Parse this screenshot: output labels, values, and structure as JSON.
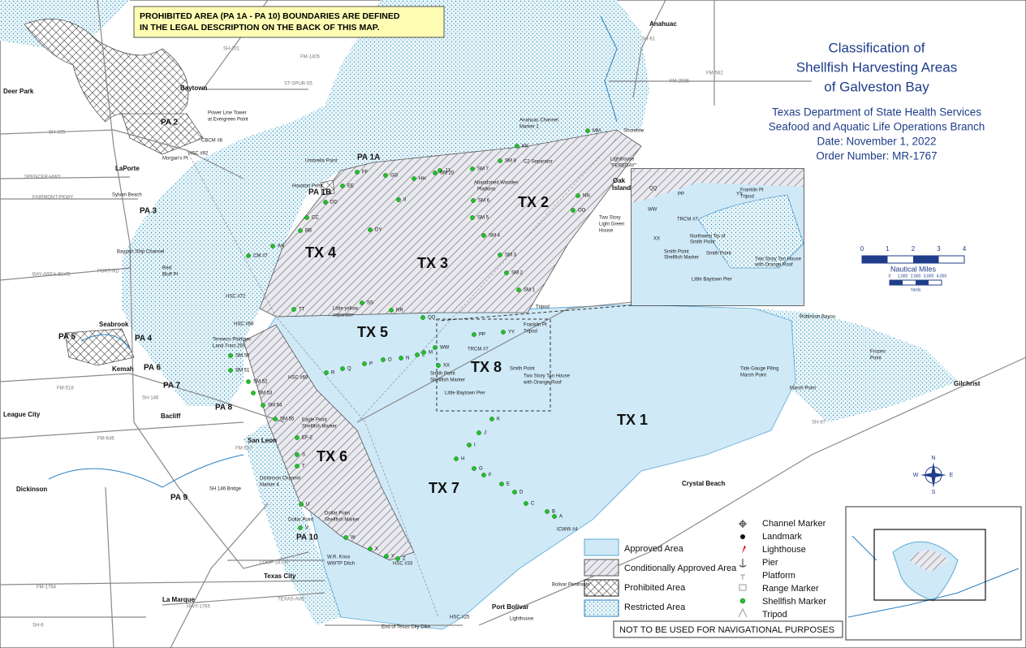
{
  "notice": [
    "PROHIBITED AREA (PA 1A - PA 10) BOUNDARIES ARE DEFINED",
    "IN THE LEGAL DESCRIPTION ON THE BACK OF THIS MAP."
  ],
  "title": [
    "Classification of",
    "Shellfish Harvesting Areas",
    "of Galveston Bay"
  ],
  "agency": [
    "Texas Department of State Health Services",
    "Seafood and Aquatic Life Operations Branch",
    "Date: November 1, 2022",
    "Order Number: MR-1767"
  ],
  "zones": [
    "TX 1",
    "TX 2",
    "TX 3",
    "TX 4",
    "TX 5",
    "TX 6",
    "TX 7",
    "TX 8"
  ],
  "prohibited_areas": [
    "PA 1A",
    "PA 1B",
    "PA 2",
    "PA 3",
    "PA 4",
    "PA 5",
    "PA 6",
    "PA 7",
    "PA 8",
    "PA 9",
    "PA 10"
  ],
  "towns": [
    "Deer Park",
    "Baytown",
    "LaPorte",
    "Seabrook",
    "Kemah",
    "League City",
    "Bacliff",
    "San Leon",
    "Dickinson",
    "Texas City",
    "La Marque",
    "Anahuac",
    "Port Bolivar",
    "Gilchrist",
    "Crystal Beach",
    "Oak",
    "Island"
  ],
  "features": [
    "Power Line Tower",
    "at Evergreen Point",
    "Umbrella Point",
    "Houston Point",
    "Morgan's Pt",
    "CBCM #8",
    "HSC #92",
    "Sylvan Beach",
    "Bayport Ship Channel",
    "Red",
    "Bluff Pt",
    "HSC #72",
    "HSC #68",
    "HSC #60",
    "Tenneco Platform",
    "Land Tract 259",
    "Little yellow",
    "separator",
    "Anahuac Channel",
    "Marker 1",
    "Shoreline",
    "Lighthouse",
    "\"FEREDAY\"",
    "C2 Separator",
    "Abandoned Wooden",
    "Platform",
    "Two Story",
    "Light Green",
    "House",
    "Eagle Point",
    "Shellfish Marker",
    "Dickinson Channel",
    "Marker 4",
    "Dollar Point",
    "Shellfish Marker",
    "Dollar Point",
    "W.R. Knox",
    "WWTP Ditch",
    "SH 146 Bridge",
    "HSC #33",
    "HSC #25",
    "Lighthouse",
    "End of Texas City Dike",
    "Bolivar Peninsula",
    "Robinson Bayou",
    "Frozen",
    "Point",
    "Marsh Point",
    "Tide Gauge Piling",
    "Marsh Point",
    "Smith Point",
    "Shellfish Marker",
    "Little Baytown Pier",
    "Smith Point",
    "Two Story Tan House",
    "with Orange Roof",
    "TRCM #7",
    "Franklin Pt",
    "Tripod",
    "Tripod",
    "ICWW #4"
  ],
  "roads": [
    "SH-146",
    "SH-225",
    "SPENCER-HWY",
    "FAIRMONT-PKWY",
    "BAY-AREA-BLVD",
    "PORT-RD",
    "FM-518",
    "FM-646",
    "FM-517",
    "FM-1764",
    "LOOP-197-N",
    "TEXAS-AVE",
    "HWY-1765",
    "SH-6",
    "ST-SPUR-55",
    "SH-201",
    "FM-2936",
    "SH-61",
    "SH-87",
    "FM-1405",
    "FM-562"
  ],
  "markers": [
    "A",
    "B",
    "C",
    "D",
    "E",
    "F",
    "G",
    "H",
    "I",
    "J",
    "K",
    "L",
    "M",
    "N",
    "O",
    "P",
    "Q",
    "R",
    "S",
    "T",
    "U",
    "V",
    "W",
    "X",
    "Y",
    "Z",
    "EF-2",
    "AA",
    "BB",
    "CC",
    "DD",
    "EE",
    "FF",
    "GG",
    "HH",
    "II",
    "JJ",
    "KK",
    "MM",
    "NN",
    "OO",
    "PP",
    "QQ",
    "RR",
    "SS",
    "TT",
    "WW",
    "XX",
    "YY",
    "DY",
    "SM 1",
    "SM 2",
    "SM 3",
    "SM 4",
    "SM 5",
    "SM 6",
    "SM 7",
    "SM 8",
    "SM 20",
    "SM 50",
    "SM 51",
    "SM 52",
    "SM 53",
    "SM 54",
    "SM 55",
    "CM #7"
  ],
  "inset": [
    "WW",
    "TRCM #7",
    "Northwest Tip of",
    "Smith Point",
    "XX",
    "Smith Point",
    "Shellfish Marker",
    "Smith Point",
    "Little Baytown Pier",
    "PP",
    "YY",
    "Franklin Pt",
    "Tripod",
    "Two Story Tan House",
    "with Orange Roof",
    "QQ"
  ],
  "legend": {
    "areas": [
      "Approved Area",
      "Conditionally Approved Area",
      "Prohibited Area",
      "Restricted Area"
    ],
    "symbols": [
      "Channel Marker",
      "Landmark",
      "Lighthouse",
      "Pier",
      "Platform",
      "Range Marker",
      "Shellfish Marker",
      "Tripod"
    ]
  },
  "scale": {
    "ticks": [
      0,
      1,
      2,
      3,
      4
    ],
    "unit": "Nautical Miles",
    "yard_ticks": [
      "0",
      "1,000",
      "2,000",
      "3,000",
      "4,000"
    ],
    "yard_unit": "Yards"
  },
  "compass": [
    "N",
    "E",
    "S",
    "W"
  ],
  "disclaimer": "NOT TO BE USED FOR NAVIGATIONAL PURPOSES"
}
